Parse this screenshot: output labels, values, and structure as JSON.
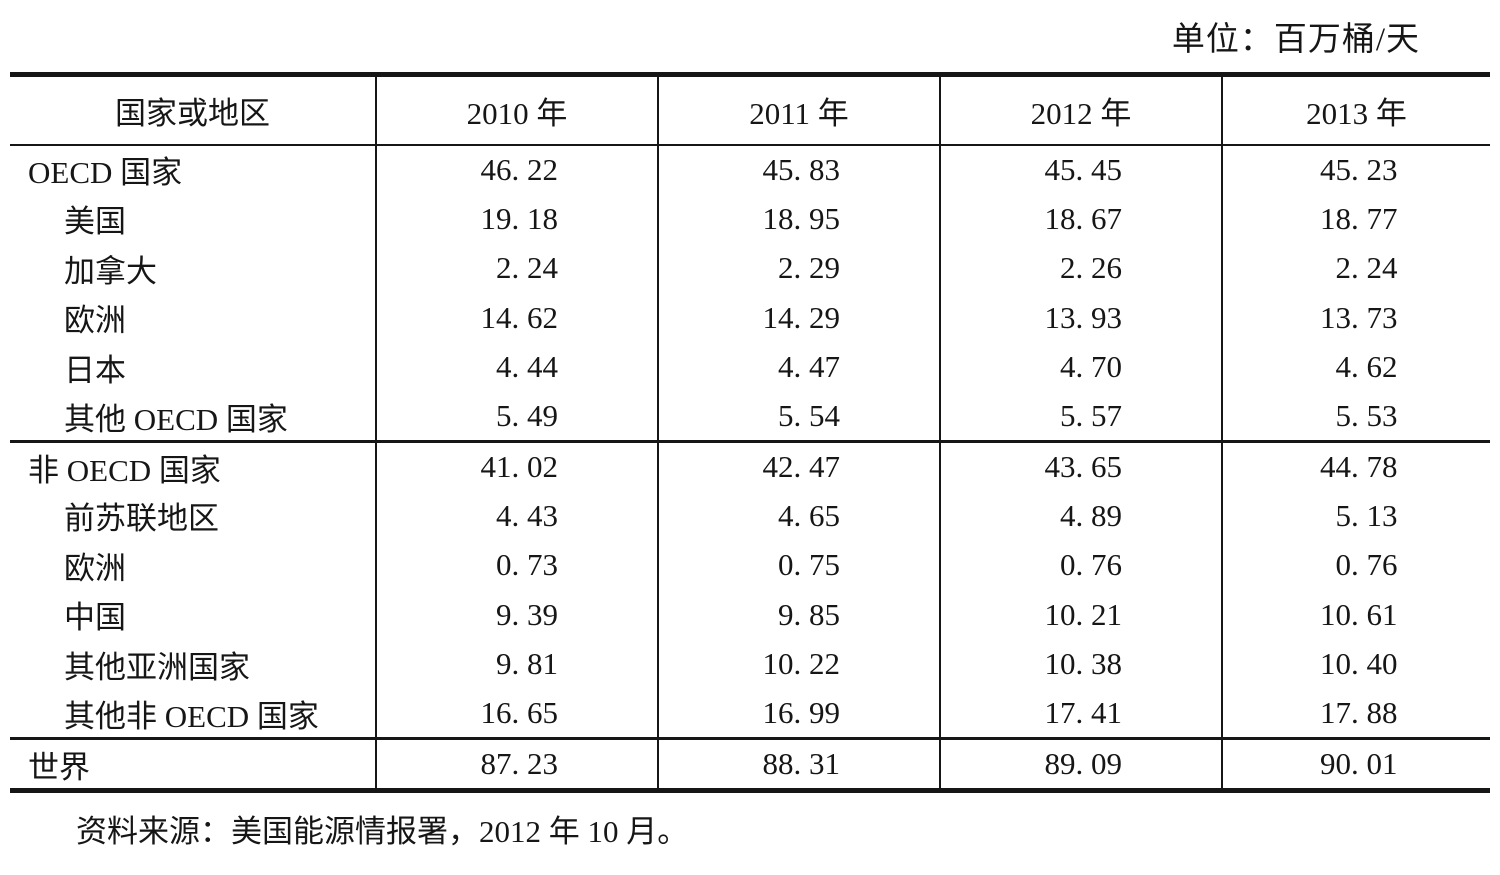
{
  "unit_label": "单位：百万桶/天",
  "table": {
    "columns": [
      "国家或地区",
      "2010 年",
      "2011 年",
      "2012 年",
      "2013 年"
    ],
    "rows": [
      {
        "label": "OECD 国家",
        "level": 0,
        "section_start": false,
        "values": [
          "46. 22",
          "45. 83",
          "45. 45",
          "45. 23"
        ]
      },
      {
        "label": "美国",
        "level": 1,
        "section_start": false,
        "values": [
          "19. 18",
          "18. 95",
          "18. 67",
          "18. 77"
        ]
      },
      {
        "label": "加拿大",
        "level": 1,
        "section_start": false,
        "values": [
          "2. 24",
          "2. 29",
          "2. 26",
          "2. 24"
        ]
      },
      {
        "label": "欧洲",
        "level": 1,
        "section_start": false,
        "values": [
          "14. 62",
          "14. 29",
          "13. 93",
          "13. 73"
        ]
      },
      {
        "label": "日本",
        "level": 1,
        "section_start": false,
        "values": [
          "4. 44",
          "4. 47",
          "4. 70",
          "4. 62"
        ]
      },
      {
        "label": "其他 OECD 国家",
        "level": 1,
        "section_start": false,
        "values": [
          "5. 49",
          "5. 54",
          "5. 57",
          "5. 53"
        ]
      },
      {
        "label": "非 OECD 国家",
        "level": 0,
        "section_start": true,
        "values": [
          "41. 02",
          "42. 47",
          "43. 65",
          "44. 78"
        ]
      },
      {
        "label": "前苏联地区",
        "level": 1,
        "section_start": false,
        "values": [
          "4. 43",
          "4. 65",
          "4. 89",
          "5. 13"
        ]
      },
      {
        "label": "欧洲",
        "level": 1,
        "section_start": false,
        "values": [
          "0. 73",
          "0. 75",
          "0. 76",
          "0. 76"
        ]
      },
      {
        "label": "中国",
        "level": 1,
        "section_start": false,
        "values": [
          "9. 39",
          "9. 85",
          "10. 21",
          "10. 61"
        ]
      },
      {
        "label": "其他亚洲国家",
        "level": 1,
        "section_start": false,
        "values": [
          "9. 81",
          "10. 22",
          "10. 38",
          "10. 40"
        ]
      },
      {
        "label": "其他非 OECD 国家",
        "level": 1,
        "section_start": false,
        "values": [
          "16. 65",
          "16. 99",
          "17. 41",
          "17. 88"
        ]
      },
      {
        "label": "世界",
        "level": 0,
        "section_start": true,
        "values": [
          "87. 23",
          "88. 31",
          "89. 09",
          "90. 01"
        ]
      }
    ]
  },
  "source_note": "资料来源：美国能源情报署，2012 年 10 月。"
}
